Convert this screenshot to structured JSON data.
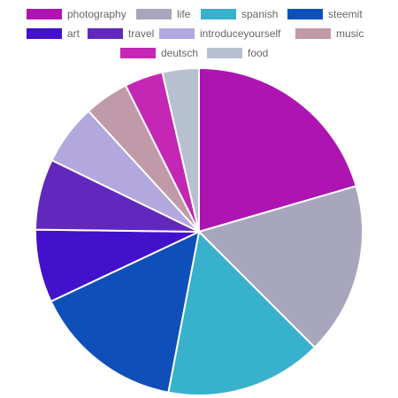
{
  "chart_data": {
    "type": "pie",
    "title": "",
    "legend_position": "top",
    "categories": [
      "photography",
      "life",
      "spanish",
      "steemit",
      "art",
      "travel",
      "introduceyourself",
      "music",
      "deutsch",
      "food"
    ],
    "series": [
      {
        "values": [
          20.5,
          17.0,
          15.5,
          15.0,
          7.2,
          7.0,
          6.0,
          4.4,
          3.8,
          3.6
        ]
      }
    ],
    "colors": [
      "#ad14b1",
      "#a8a6bc",
      "#37b1cc",
      "#0f4fb9",
      "#4311cc",
      "#6228bd",
      "#b2a8dd",
      "#c09aa9",
      "#c427b4",
      "#b8bfd1"
    ]
  }
}
